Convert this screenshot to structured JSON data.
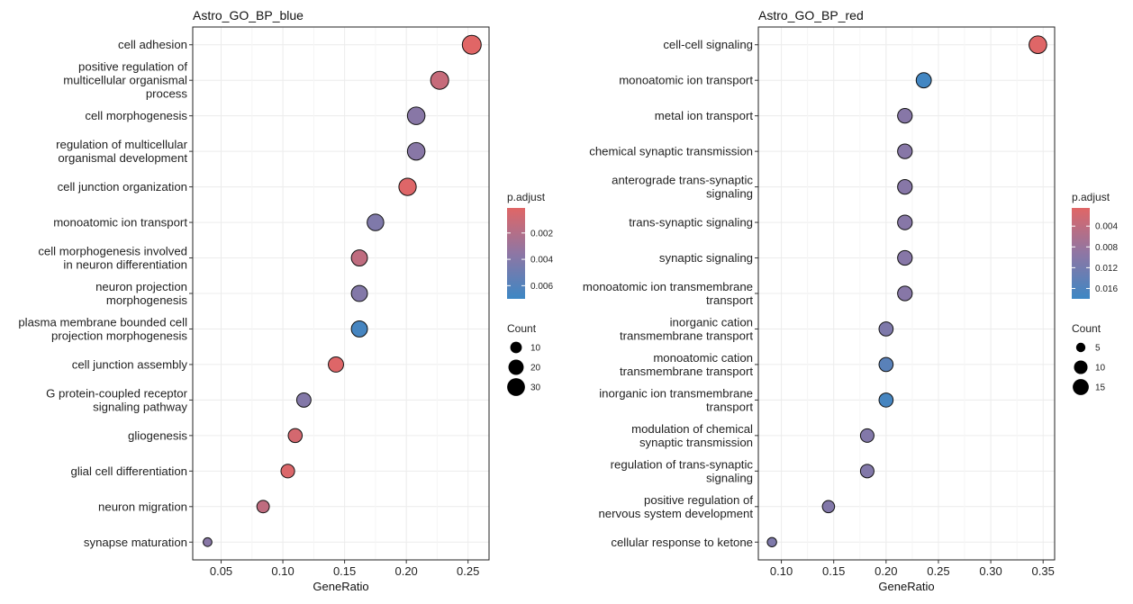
{
  "chart_data": [
    {
      "type": "scatter",
      "title": "Astro_GO_BP_blue",
      "xlabel": "GeneRatio",
      "ylabel": "",
      "xlim": [
        0.027,
        0.267
      ],
      "xticks": [
        0.05,
        0.1,
        0.15,
        0.2,
        0.25
      ],
      "xtick_labels": [
        "0.05",
        "0.10",
        "0.15",
        "0.20",
        "0.25"
      ],
      "grid": true,
      "points": [
        {
          "term": [
            "cell adhesion"
          ],
          "gene_ratio": 0.253,
          "count": 35,
          "p_adjust": 0.0001
        },
        {
          "term": [
            "positive regulation of",
            "multicellular organismal",
            "process"
          ],
          "gene_ratio": 0.227,
          "count": 31,
          "p_adjust": 0.0012
        },
        {
          "term": [
            "cell morphogenesis"
          ],
          "gene_ratio": 0.208,
          "count": 29,
          "p_adjust": 0.0038
        },
        {
          "term": [
            "regulation of multicellular",
            "organismal development"
          ],
          "gene_ratio": 0.208,
          "count": 29,
          "p_adjust": 0.0038
        },
        {
          "term": [
            "cell junction organization"
          ],
          "gene_ratio": 0.201,
          "count": 28,
          "p_adjust": 0.0002
        },
        {
          "term": [
            "monoatomic ion transport"
          ],
          "gene_ratio": 0.175,
          "count": 25,
          "p_adjust": 0.0042
        },
        {
          "term": [
            "cell morphogenesis involved",
            "in neuron differentiation"
          ],
          "gene_ratio": 0.162,
          "count": 23,
          "p_adjust": 0.0015
        },
        {
          "term": [
            "neuron projection",
            "morphogenesis"
          ],
          "gene_ratio": 0.162,
          "count": 23,
          "p_adjust": 0.004
        },
        {
          "term": [
            "plasma membrane bounded cell",
            "projection morphogenesis"
          ],
          "gene_ratio": 0.162,
          "count": 23,
          "p_adjust": 0.0066
        },
        {
          "term": [
            "cell junction assembly"
          ],
          "gene_ratio": 0.143,
          "count": 20,
          "p_adjust": 0.0002
        },
        {
          "term": [
            "G protein-coupled receptor",
            "signaling pathway"
          ],
          "gene_ratio": 0.117,
          "count": 17,
          "p_adjust": 0.004
        },
        {
          "term": [
            "gliogenesis"
          ],
          "gene_ratio": 0.11,
          "count": 16,
          "p_adjust": 0.0006
        },
        {
          "term": [
            "glial cell differentiation"
          ],
          "gene_ratio": 0.104,
          "count": 15,
          "p_adjust": 0.0003
        },
        {
          "term": [
            "neuron migration"
          ],
          "gene_ratio": 0.084,
          "count": 12,
          "p_adjust": 0.0015
        },
        {
          "term": [
            "synapse maturation"
          ],
          "gene_ratio": 0.039,
          "count": 6,
          "p_adjust": 0.0038
        }
      ],
      "color_legend": {
        "title": "p.adjust",
        "min": 0.0001,
        "max": 0.007,
        "ticks": [
          0.002,
          0.004,
          0.006
        ],
        "tick_labels": [
          "0.002",
          "0.004",
          "0.006"
        ],
        "low_color": "#e06666",
        "mid_color": "#8e76a4",
        "high_color": "#3d87c4"
      },
      "size_legend": {
        "title": "Count",
        "min": 5,
        "max": 36,
        "values": [
          10,
          20,
          30
        ],
        "labels": [
          "10",
          "20",
          "30"
        ]
      }
    },
    {
      "type": "scatter",
      "title": "Astro_GO_BP_red",
      "xlabel": "GeneRatio",
      "ylabel": "",
      "xlim": [
        0.078,
        0.361
      ],
      "xticks": [
        0.1,
        0.15,
        0.2,
        0.25,
        0.3,
        0.35
      ],
      "xtick_labels": [
        "0.10",
        "0.15",
        "0.20",
        "0.25",
        "0.30",
        "0.35"
      ],
      "grid": true,
      "points": [
        {
          "term": [
            "cell-cell signaling"
          ],
          "gene_ratio": 0.345,
          "count": 19,
          "p_adjust": 0.0006
        },
        {
          "term": [
            "monoatomic ion transport"
          ],
          "gene_ratio": 0.236,
          "count": 13,
          "p_adjust": 0.0175
        },
        {
          "term": [
            "metal ion transport"
          ],
          "gene_ratio": 0.218,
          "count": 12,
          "p_adjust": 0.01
        },
        {
          "term": [
            "chemical synaptic transmission"
          ],
          "gene_ratio": 0.218,
          "count": 12,
          "p_adjust": 0.01
        },
        {
          "term": [
            "anterograde trans-synaptic",
            "signaling"
          ],
          "gene_ratio": 0.218,
          "count": 12,
          "p_adjust": 0.01
        },
        {
          "term": [
            "trans-synaptic signaling"
          ],
          "gene_ratio": 0.218,
          "count": 12,
          "p_adjust": 0.01
        },
        {
          "term": [
            "synaptic signaling"
          ],
          "gene_ratio": 0.218,
          "count": 12,
          "p_adjust": 0.01
        },
        {
          "term": [
            "monoatomic ion transmembrane",
            "transport"
          ],
          "gene_ratio": 0.218,
          "count": 12,
          "p_adjust": 0.01
        },
        {
          "term": [
            "inorganic cation",
            "transmembrane transport"
          ],
          "gene_ratio": 0.2,
          "count": 11,
          "p_adjust": 0.011
        },
        {
          "term": [
            "monoatomic cation",
            "transmembrane transport"
          ],
          "gene_ratio": 0.2,
          "count": 11,
          "p_adjust": 0.015
        },
        {
          "term": [
            "inorganic ion transmembrane",
            "transport"
          ],
          "gene_ratio": 0.2,
          "count": 11,
          "p_adjust": 0.017
        },
        {
          "term": [
            "modulation of chemical",
            "synaptic transmission"
          ],
          "gene_ratio": 0.182,
          "count": 10,
          "p_adjust": 0.0105
        },
        {
          "term": [
            "regulation of trans-synaptic",
            "signaling"
          ],
          "gene_ratio": 0.182,
          "count": 10,
          "p_adjust": 0.0105
        },
        {
          "term": [
            "positive regulation of",
            "nervous system development"
          ],
          "gene_ratio": 0.145,
          "count": 8,
          "p_adjust": 0.0105
        },
        {
          "term": [
            "cellular response to ketone"
          ],
          "gene_ratio": 0.091,
          "count": 5,
          "p_adjust": 0.011
        }
      ],
      "color_legend": {
        "title": "p.adjust",
        "min": 0.0005,
        "max": 0.018,
        "ticks": [
          0.004,
          0.008,
          0.012,
          0.016
        ],
        "tick_labels": [
          "0.004",
          "0.008",
          "0.012",
          "0.016"
        ],
        "low_color": "#e06666",
        "mid_color": "#8e76a4",
        "high_color": "#3d87c4"
      },
      "size_legend": {
        "title": "Count",
        "min": 4,
        "max": 20,
        "values": [
          5,
          10,
          15
        ],
        "labels": [
          "5",
          "10",
          "15"
        ]
      }
    }
  ]
}
